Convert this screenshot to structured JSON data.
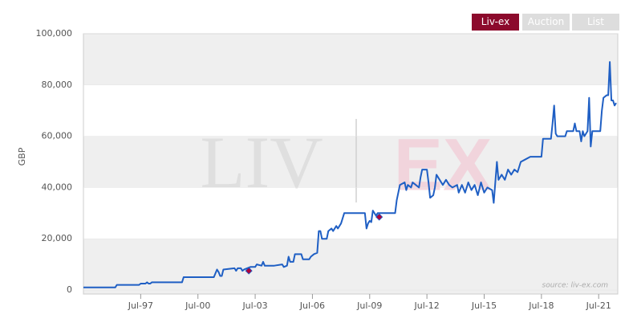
{
  "chart_data": {
    "type": "line",
    "buttons": [
      "Liv-ex",
      "Auction",
      "List"
    ],
    "ylabel": "GBP",
    "watermark": [
      "LIV",
      "EX"
    ],
    "source": "source: liv-ex.com",
    "ylim": [
      0,
      100000
    ],
    "yticks": [
      {
        "value": 0,
        "label": "0"
      },
      {
        "value": 20000,
        "label": "20,000"
      },
      {
        "value": 40000,
        "label": "40,000"
      },
      {
        "value": 60000,
        "label": "60,000"
      },
      {
        "value": 80000,
        "label": "80,000"
      },
      {
        "value": 100000,
        "label": "100,000"
      }
    ],
    "xlim": [
      "Jul-94",
      "Jul-22"
    ],
    "xticks": [
      "Jul-97",
      "Jul-00",
      "Jul-03",
      "Jul-06",
      "Jul-09",
      "Jul-12",
      "Jul-15",
      "Jul-18",
      "Jul-21"
    ],
    "grid": true,
    "x": [
      "Jul-94",
      "Mar-96",
      "Apr-96",
      "Jun-97",
      "Jul-97",
      "Oct-97",
      "Nov-97",
      "Dec-97",
      "Jan-98",
      "Feb-98",
      "Sep-99",
      "Oct-99",
      "May-01",
      "Jun-01",
      "Jul-01",
      "Aug-01",
      "Sep-01",
      "Oct-01",
      "Nov-01",
      "Jun-02",
      "Jul-02",
      "Aug-02",
      "Oct-02",
      "Nov-02",
      "Dec-02",
      "Apr-03",
      "Jul-03",
      "Aug-03",
      "Nov-03",
      "Dec-03",
      "Jan-04",
      "Jul-04",
      "Dec-04",
      "Jan-05",
      "Mar-05",
      "Apr-05",
      "May-05",
      "Jul-05",
      "Aug-05",
      "Dec-05",
      "Jan-06",
      "May-06",
      "Jun-06",
      "Aug-06",
      "Oct-06",
      "Nov-06",
      "Dec-06",
      "Jan-07",
      "Apr-07",
      "May-07",
      "Jul-07",
      "Aug-07",
      "Oct-07",
      "Nov-07",
      "Jan-08",
      "Feb-08",
      "Mar-08",
      "Apr-09",
      "May-09",
      "Jun-09",
      "Jul-09",
      "Aug-09",
      "Sep-09",
      "Nov-09",
      "Dec-09",
      "Nov-10",
      "Dec-10",
      "Jan-11",
      "Feb-11",
      "May-11",
      "Jun-11",
      "Jul-11",
      "Sep-11",
      "Oct-11",
      "Dec-11",
      "Feb-12",
      "Mar-12",
      "Apr-12",
      "Jul-12",
      "Aug-12",
      "Sep-12",
      "Nov-12",
      "Dec-12",
      "Jan-13",
      "Mar-13",
      "May-13",
      "Jul-13",
      "Sep-13",
      "Nov-13",
      "Feb-14",
      "Mar-14",
      "May-14",
      "Jul-14",
      "Sep-14",
      "Nov-14",
      "Jan-15",
      "Mar-15",
      "May-15",
      "Jul-15",
      "Sep-15",
      "Dec-15",
      "Jan-16",
      "Mar-16",
      "Apr-16",
      "Jun-16",
      "Aug-16",
      "Oct-16",
      "Dec-16",
      "Feb-17",
      "Apr-17",
      "Jun-17",
      "Sep-17",
      "Dec-17",
      "Jul-18",
      "Aug-18",
      "Dec-18",
      "Jan-19",
      "Feb-19",
      "Mar-19",
      "Apr-19",
      "May-19",
      "Oct-19",
      "Nov-19",
      "Mar-20",
      "Apr-20",
      "May-20",
      "Jul-20",
      "Aug-20",
      "Sep-20",
      "Oct-20",
      "Dec-20",
      "Jan-21",
      "Feb-21",
      "Mar-21",
      "Aug-21",
      "Sep-21",
      "Oct-21",
      "Dec-21",
      "Jan-22",
      "Feb-22",
      "Mar-22",
      "Apr-22",
      "May-22",
      "Jun-22"
    ],
    "series": [
      {
        "color": "#1f5fc4",
        "values": [
          1000,
          1000,
          2000,
          2000,
          2500,
          2500,
          3000,
          2500,
          2500,
          3000,
          3000,
          5000,
          5000,
          6500,
          8000,
          7000,
          5500,
          5500,
          8000,
          8500,
          7500,
          8500,
          8500,
          7500,
          8000,
          9000,
          9000,
          10000,
          9500,
          11000,
          9500,
          9500,
          10000,
          9000,
          9500,
          13000,
          11000,
          11000,
          14000,
          14000,
          12000,
          12000,
          13000,
          14000,
          14500,
          23000,
          23000,
          20000,
          20000,
          23000,
          24000,
          23000,
          25000,
          24000,
          26000,
          28000,
          30000,
          30000,
          24000,
          26000,
          27000,
          26500,
          31000,
          29000,
          30000,
          30000,
          35000,
          38000,
          41000,
          42000,
          39000,
          41000,
          40000,
          42000,
          41000,
          40000,
          44000,
          47000,
          47000,
          42000,
          36000,
          37000,
          40000,
          45000,
          43000,
          41000,
          43000,
          41000,
          40000,
          41000,
          38000,
          41000,
          38000,
          42000,
          39000,
          41000,
          37000,
          42000,
          38000,
          40000,
          39000,
          34000,
          50000,
          43000,
          45000,
          43000,
          47000,
          45000,
          47000,
          46000,
          50000,
          51000,
          52000,
          52000,
          59000,
          59000,
          59000,
          65000,
          72000,
          61000,
          60000,
          60000,
          62000,
          62000,
          65000,
          62000,
          62000,
          58000,
          62000,
          60000,
          62000,
          75000,
          56000,
          62000,
          62000,
          70000,
          75000,
          76000,
          76000,
          89000,
          74000,
          74000,
          72000,
          73000
        ]
      }
    ],
    "markers": {
      "color": "#b0003a",
      "x": [
        "Mar-03",
        "Jan-10"
      ],
      "values": [
        7500,
        28500
      ]
    }
  }
}
